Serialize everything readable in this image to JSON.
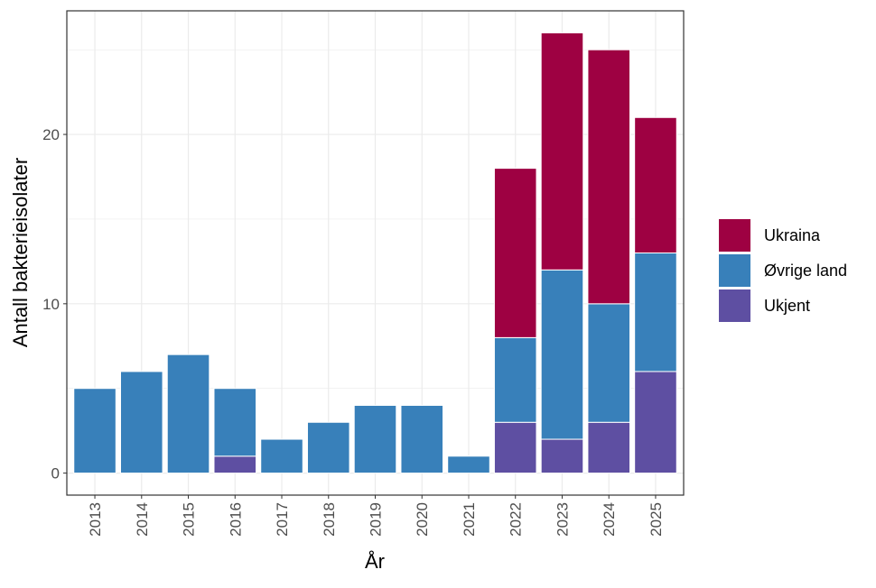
{
  "chart_data": {
    "type": "bar",
    "stacked": true,
    "title": "",
    "xlabel": "År",
    "ylabel": "Antall bakterieisolater",
    "categories": [
      "2013",
      "2014",
      "2015",
      "2016",
      "2017",
      "2018",
      "2019",
      "2020",
      "2021",
      "2022",
      "2023",
      "2024",
      "2025"
    ],
    "ylim": [
      -1.3,
      27.3
    ],
    "yticks": [
      0,
      10,
      20
    ],
    "grid": true,
    "legend_position": "right",
    "series": [
      {
        "name": "Ukjent",
        "color": "#5E4FA2",
        "values": [
          0,
          0,
          0,
          1,
          0,
          0,
          0,
          0,
          0,
          3,
          2,
          3,
          6
        ]
      },
      {
        "name": "Øvrige land",
        "color": "#3880BA",
        "values": [
          5,
          6,
          7,
          4,
          2,
          3,
          4,
          4,
          1,
          5,
          10,
          7,
          7
        ]
      },
      {
        "name": "Ukraina",
        "color": "#9E0142",
        "values": [
          0,
          0,
          0,
          0,
          0,
          0,
          0,
          0,
          0,
          10,
          14,
          15,
          8
        ]
      }
    ],
    "legend_order": [
      "Ukraina",
      "Øvrige land",
      "Ukjent"
    ]
  }
}
